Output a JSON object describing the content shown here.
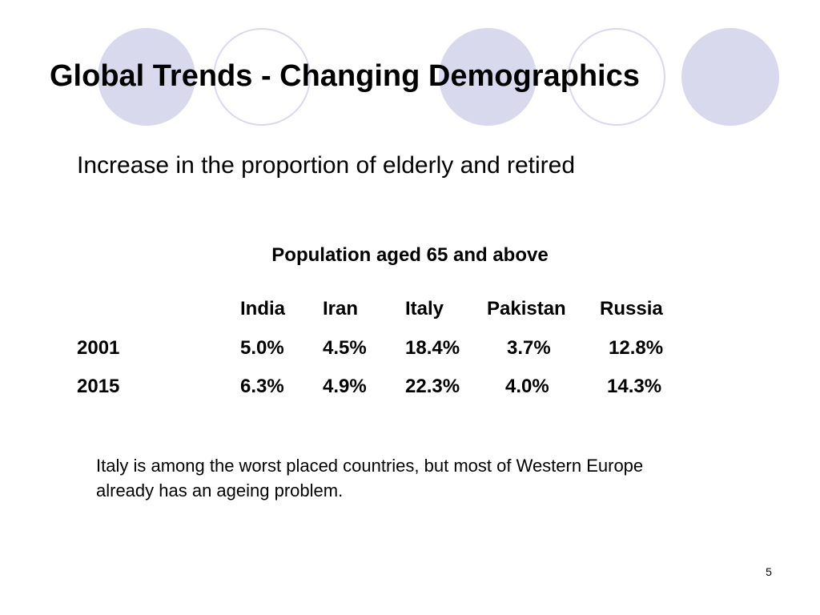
{
  "slide": {
    "title": "Global Trends - Changing Demographics",
    "subtitle": "Increase in the proportion of elderly and retired",
    "table": {
      "title": "Population aged 65 and above",
      "columns": [
        "India",
        "Iran",
        "Italy",
        "Pakistan",
        "Russia"
      ],
      "rows": [
        {
          "year": "2001",
          "values": [
            "5.0%",
            "4.5%",
            "18.4%",
            "3.7%",
            "12.8%"
          ]
        },
        {
          "year": "2015",
          "values": [
            "6.3%",
            "4.9%",
            "22.3%",
            "4.0%",
            "14.3%"
          ]
        }
      ]
    },
    "note": "Italy is among the worst placed countries, but most of Western Europe already has an ageing problem.",
    "page_number": "5"
  },
  "colors": {
    "circle_fill": "#d9d9ee",
    "circle_outline": "#d9d9ee"
  }
}
